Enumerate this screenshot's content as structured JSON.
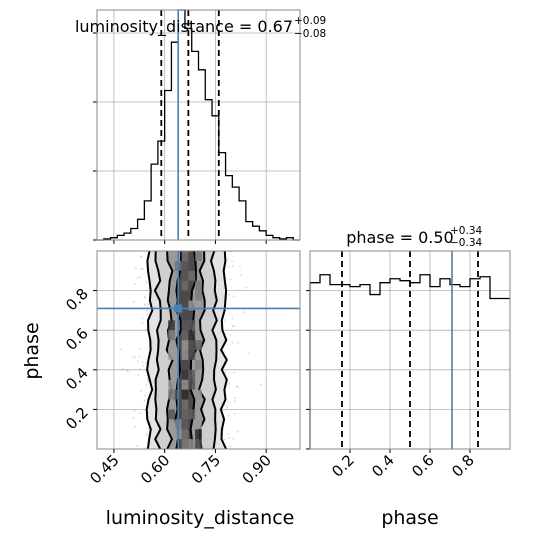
{
  "chart_data": [
    {
      "type": "histogram",
      "panel": "luminosity_distance-marginal",
      "title": {
        "param": "luminosity_distance",
        "eq": " = ",
        "median": "0.67",
        "plus": "+0.09",
        "minus": "−0.08"
      },
      "bins_x": [
        0.4,
        0.42,
        0.44,
        0.46,
        0.48,
        0.5,
        0.52,
        0.54,
        0.56,
        0.58,
        0.6,
        0.62,
        0.64,
        0.66,
        0.68,
        0.7,
        0.72,
        0.74,
        0.76,
        0.78,
        0.8,
        0.82,
        0.84,
        0.86,
        0.88,
        0.9,
        0.92,
        0.94,
        0.96,
        0.98,
        1.0
      ],
      "counts": [
        0.0,
        0.005,
        0.01,
        0.02,
        0.03,
        0.05,
        0.09,
        0.17,
        0.33,
        0.43,
        0.65,
        0.86,
        1.0,
        0.92,
        0.82,
        0.74,
        0.61,
        0.54,
        0.38,
        0.28,
        0.23,
        0.17,
        0.08,
        0.06,
        0.04,
        0.02,
        0.01,
        0.005,
        0.01,
        0.0
      ],
      "quantiles": [
        0.59,
        0.67,
        0.76
      ],
      "truth": 0.64,
      "xlim": [
        0.4,
        1.0
      ],
      "ylim": [
        0,
        1.0
      ],
      "y_ticks": [
        0.0,
        0.3,
        0.6,
        0.9
      ]
    },
    {
      "type": "histogram",
      "panel": "phase-marginal",
      "title": {
        "param": "phase",
        "eq": " = ",
        "median": "0.50",
        "plus": "+0.34",
        "minus": "−0.34"
      },
      "bins_x": [
        0.0,
        0.05,
        0.1,
        0.15,
        0.2,
        0.25,
        0.3,
        0.35,
        0.4,
        0.45,
        0.5,
        0.55,
        0.6,
        0.65,
        0.7,
        0.75,
        0.8,
        0.85,
        0.9,
        0.95,
        1.0
      ],
      "counts": [
        0.84,
        0.88,
        0.83,
        0.83,
        0.82,
        0.83,
        0.78,
        0.84,
        0.86,
        0.85,
        0.84,
        0.88,
        0.82,
        0.86,
        0.83,
        0.82,
        0.86,
        0.87,
        0.76,
        0.76
      ],
      "quantiles": [
        0.16,
        0.5,
        0.84
      ],
      "truth": 0.71,
      "xlim": [
        0.0,
        1.0
      ],
      "ylim": [
        0,
        1.0
      ],
      "y_ticks": [
        0.0,
        0.2,
        0.4,
        0.6,
        0.8
      ]
    },
    {
      "type": "scatter",
      "panel": "joint",
      "description_values": "2D posterior: luminosity_distance vs phase",
      "xlim": [
        0.4,
        1.0
      ],
      "ylim": [
        0.0,
        1.0
      ],
      "x_ticks": [
        0.45,
        0.6,
        0.75,
        0.9
      ],
      "x_tick_labels": [
        "0.45",
        "0.60",
        "0.75",
        "0.90"
      ],
      "y_ticks": [
        0.2,
        0.4,
        0.6,
        0.8
      ],
      "y_tick_labels": [
        "0.2",
        "0.4",
        "0.6",
        "0.8"
      ],
      "truth": {
        "x": 0.64,
        "y": 0.71
      },
      "contour_x_pairs": [
        [
          0.64,
          0.685
        ],
        [
          0.615,
          0.71
        ],
        [
          0.58,
          0.745
        ],
        [
          0.555,
          0.775
        ]
      ]
    }
  ],
  "axes": {
    "xlabel_left": "luminosity_distance",
    "xlabel_right": "phase",
    "ylabel_left": "phase",
    "phase_tick_labels": [
      "0.2",
      "0.4",
      "0.6",
      "0.8"
    ]
  },
  "colors": {
    "truth": "#4682b4",
    "line": "#000000",
    "grid": "#b0b0b0",
    "density": "#808080"
  }
}
